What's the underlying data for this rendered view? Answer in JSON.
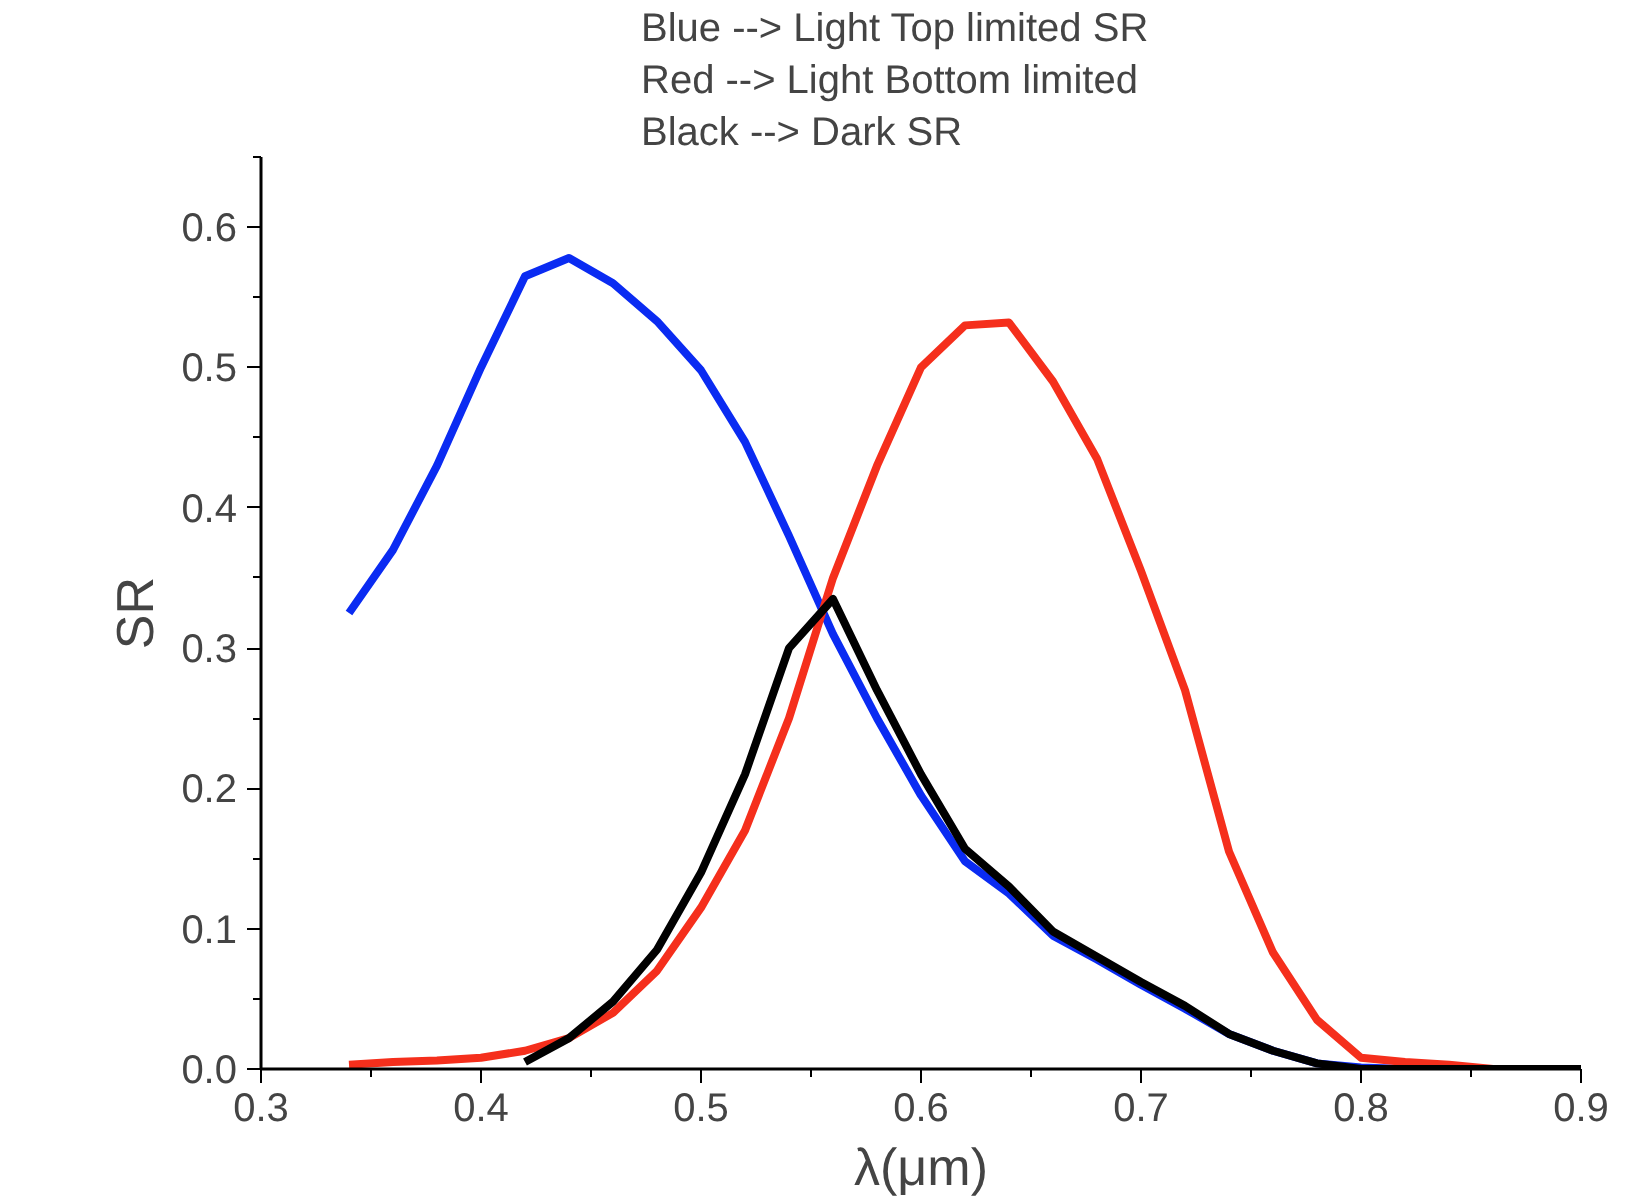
{
  "chart_data": {
    "type": "line",
    "xlabel": "λ(μm)",
    "ylabel": "SR",
    "annotations": [
      "Blue --> Light Top limited SR",
      "Red --> Light Bottom limited",
      "Black --> Dark SR"
    ],
    "x": [
      0.34,
      0.36,
      0.38,
      0.4,
      0.42,
      0.44,
      0.46,
      0.48,
      0.5,
      0.52,
      0.54,
      0.56,
      0.58,
      0.6,
      0.62,
      0.64,
      0.66,
      0.68,
      0.7,
      0.72,
      0.74,
      0.76,
      0.78,
      0.8,
      0.82,
      0.84,
      0.86,
      0.88,
      0.9
    ],
    "series": [
      {
        "color": "#0a2bf2",
        "x": [
          0.34,
          0.36,
          0.38,
          0.4,
          0.42,
          0.44,
          0.46,
          0.48,
          0.5,
          0.52,
          0.54,
          0.56,
          0.58,
          0.6,
          0.62,
          0.64,
          0.66,
          0.68,
          0.7,
          0.72,
          0.74,
          0.76,
          0.78,
          0.8,
          0.82,
          0.84
        ],
        "values": [
          0.325,
          0.37,
          0.43,
          0.5,
          0.565,
          0.578,
          0.56,
          0.533,
          0.498,
          0.447,
          0.38,
          0.31,
          0.25,
          0.195,
          0.148,
          0.125,
          0.095,
          0.078,
          0.06,
          0.043,
          0.025,
          0.013,
          0.004,
          0.001,
          0,
          0
        ]
      },
      {
        "color": "#f52f1c",
        "values": [
          0.003,
          0.005,
          0.006,
          0.008,
          0.013,
          0.022,
          0.04,
          0.07,
          0.115,
          0.17,
          0.25,
          0.35,
          0.43,
          0.5,
          0.53,
          0.532,
          0.49,
          0.435,
          0.355,
          0.27,
          0.155,
          0.083,
          0.035,
          0.008,
          0.005,
          0.003,
          0,
          0,
          0
        ]
      },
      {
        "color": "#000000",
        "x": [
          0.42,
          0.44,
          0.46,
          0.48,
          0.5,
          0.52,
          0.54,
          0.56,
          0.58,
          0.6,
          0.62,
          0.64,
          0.66,
          0.68,
          0.7,
          0.72,
          0.74,
          0.76,
          0.78,
          0.8,
          0.82,
          0.84,
          0.86,
          0.88,
          0.9
        ],
        "values": [
          0.005,
          0.022,
          0.048,
          0.085,
          0.14,
          0.21,
          0.3,
          0.335,
          0.27,
          0.21,
          0.157,
          0.13,
          0.098,
          0.08,
          0.062,
          0.045,
          0.025,
          0.013,
          0.004,
          0,
          0,
          0,
          0,
          0,
          0
        ]
      }
    ],
    "xlim": [
      0.3,
      0.9
    ],
    "xticks": [
      0.3,
      0.4,
      0.5,
      0.6,
      0.7,
      0.8,
      0.9
    ],
    "ylim": [
      0,
      0.65
    ],
    "yticks": [
      {
        "value": 0,
        "label": "0.0"
      },
      0.1,
      0.2,
      0.3,
      0.4,
      0.5,
      0.6
    ],
    "grid": false,
    "marker": "none",
    "line_style": "solid"
  }
}
